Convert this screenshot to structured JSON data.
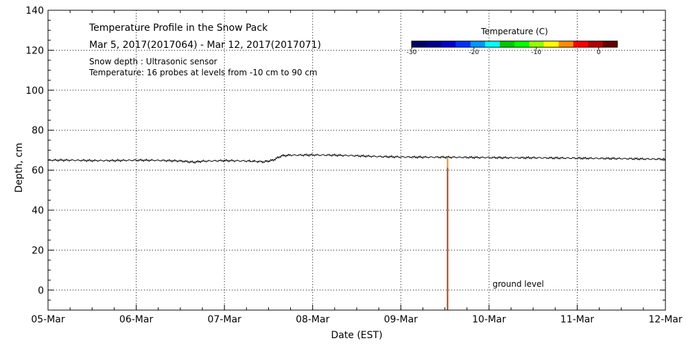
{
  "chart_data": {
    "type": "line",
    "title": "Temperature Profile in the Snow Pack",
    "subtitle": "Mar  5, 2017(2017064) - Mar 12, 2017(2017071)",
    "info_lines": [
      "Snow depth : Ultrasonic sensor",
      "Temperature: 16 probes at levels from -10 cm to 90 cm"
    ],
    "xlabel": "Date (EST)",
    "ylabel": "Depth, cm",
    "x_tick_labels": [
      "05-Mar",
      "06-Mar",
      "07-Mar",
      "08-Mar",
      "09-Mar",
      "10-Mar",
      "11-Mar",
      "12-Mar"
    ],
    "y_ticks": [
      0,
      20,
      40,
      60,
      80,
      100,
      120,
      140
    ],
    "ylim": [
      -10,
      140
    ],
    "xlim_days": [
      0,
      7
    ],
    "grid": true,
    "annotation": "ground level",
    "colorbar": {
      "title": "Temperature (C)",
      "ticks": [
        -30,
        -20,
        -10,
        0
      ],
      "range": [
        -30,
        3
      ],
      "colors": [
        "#000066",
        "#00008c",
        "#0000c8",
        "#0032ff",
        "#0096ff",
        "#00ffff",
        "#00c800",
        "#00ff00",
        "#96ff00",
        "#ffff00",
        "#ff8c00",
        "#ff0000",
        "#b40000",
        "#640000"
      ]
    },
    "series": [
      {
        "values_x_days": [
          0.0,
          0.25,
          0.5,
          0.75,
          1.0,
          1.25,
          1.5,
          1.65,
          1.75,
          2.0,
          2.25,
          2.45,
          2.55,
          2.65,
          2.75,
          3.0,
          3.25,
          3.5,
          3.75,
          4.0,
          4.25,
          4.5,
          4.75,
          5.0,
          5.25,
          5.5,
          5.75,
          6.0,
          6.25,
          6.5,
          6.75,
          7.0
        ],
        "values_y": [
          65.0,
          65.0,
          64.8,
          64.8,
          65.0,
          64.9,
          64.6,
          64.0,
          64.5,
          64.8,
          64.6,
          64.2,
          65.0,
          67.2,
          67.5,
          67.6,
          67.5,
          67.2,
          66.8,
          66.6,
          66.5,
          66.5,
          66.4,
          66.3,
          66.2,
          66.2,
          66.1,
          66.0,
          65.9,
          65.8,
          65.6,
          65.5
        ]
      }
    ],
    "temperature_trace": {
      "x_day": 4.53,
      "y_top": 66.0,
      "y_bottom": -10
    }
  }
}
